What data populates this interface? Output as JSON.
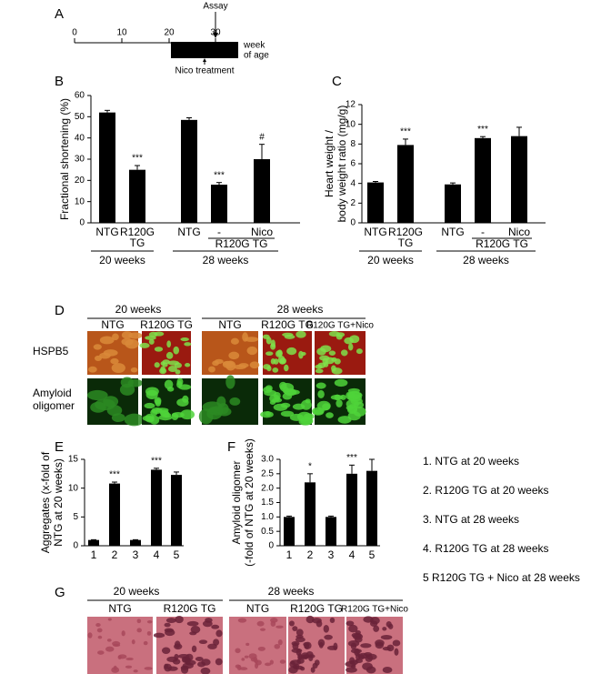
{
  "panel_a": {
    "label": "A",
    "ticks": [
      "0",
      "10",
      "20",
      "30"
    ],
    "axis_label": [
      "week",
      "of age"
    ],
    "assay": "Assay",
    "treatment": "Nico treatment"
  },
  "chart_data": [
    {
      "type": "bar",
      "panel": "B",
      "ylabel": [
        "Fractional shortening (%)"
      ],
      "categories": [
        "NTG",
        "R120G TG",
        "NTG",
        "-",
        "Nico"
      ],
      "values": [
        52,
        25,
        48.5,
        18,
        30
      ],
      "errors": [
        1,
        2,
        1,
        1,
        7
      ],
      "annotations": [
        null,
        "***",
        null,
        "***",
        "#"
      ],
      "subgroup": "R120G TG",
      "groups": [
        "20 weeks",
        "28 weeks"
      ],
      "color": "#000000",
      "ylim": [
        0,
        60
      ],
      "yticks": [
        0,
        10,
        20,
        30,
        40,
        50,
        60
      ]
    },
    {
      "type": "bar",
      "panel": "C",
      "ylabel": [
        "Heart weight /",
        "body weight ratio (mg/g)"
      ],
      "categories": [
        "NTG",
        "R120G TG",
        "NTG",
        "-",
        "Nico"
      ],
      "values": [
        4.1,
        7.9,
        3.9,
        8.6,
        8.8
      ],
      "errors": [
        0.1,
        0.6,
        0.15,
        0.15,
        0.9
      ],
      "annotations": [
        null,
        "***",
        null,
        "***",
        null
      ],
      "subgroup": "R120G TG",
      "groups": [
        "20 weeks",
        "28 weeks"
      ],
      "color": "#000000",
      "ylim": [
        0,
        12
      ],
      "yticks": [
        0,
        2,
        4,
        6,
        8,
        10,
        12
      ]
    },
    {
      "type": "bar",
      "panel": "E",
      "ylabel": [
        "Aggregates (x-fold of",
        "NTG at 20 weeks)"
      ],
      "categories": [
        "1",
        "2",
        "3",
        "4",
        "5"
      ],
      "values": [
        1,
        10.8,
        1,
        13.2,
        12.3
      ],
      "errors": [
        0.05,
        0.25,
        0.05,
        0.25,
        0.5
      ],
      "annotations": [
        null,
        "***",
        null,
        "***",
        null
      ],
      "color": "#000000",
      "ylim": [
        0,
        15
      ],
      "yticks": [
        0,
        5,
        10,
        15
      ]
    },
    {
      "type": "bar",
      "panel": "F",
      "ylabel": [
        "Amyloid oligomer",
        "(-fold of NTG at 20 weeks)"
      ],
      "categories": [
        "1",
        "2",
        "3",
        "4",
        "5"
      ],
      "values": [
        1.0,
        2.2,
        1.0,
        2.5,
        2.6
      ],
      "errors": [
        0.03,
        0.3,
        0.03,
        0.3,
        0.4
      ],
      "annotations": [
        null,
        "*",
        null,
        "***",
        null
      ],
      "color": "#000000",
      "ylim": [
        0,
        3
      ],
      "yticks": [
        0,
        0.5,
        {
          "value": 1,
          "label": "1.0"
        },
        1.5,
        {
          "value": 2,
          "label": "2.0"
        },
        2.5,
        {
          "value": 3,
          "label": "3.0"
        }
      ]
    }
  ],
  "panel_d": {
    "label": "D",
    "groups": [
      "20 weeks",
      "28 weeks"
    ],
    "columns": [
      "NTG",
      "R120G TG",
      "NTG",
      "R120G TG",
      "R120G TG+Nico"
    ],
    "rows": [
      [
        "HSPB5"
      ],
      [
        "Amyloid",
        "oligomer"
      ]
    ]
  },
  "legend_list": [
    "1. NTG at 20 weeks",
    "2. R120G TG at 20 weeks",
    "3. NTG at 28 weeks",
    "4. R120G TG at 28 weeks",
    "5 R120G TG + Nico at 28 weeks"
  ],
  "panel_g": {
    "label": "G",
    "groups": [
      "20 weeks",
      "28 weeks"
    ],
    "columns": [
      "NTG",
      "R120G TG",
      "NTG",
      "R120G TG",
      "R120G TG+Nico"
    ]
  }
}
